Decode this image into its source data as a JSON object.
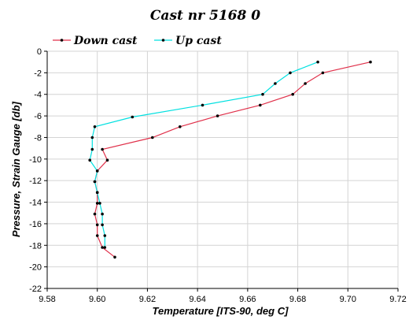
{
  "chart_data": {
    "type": "line",
    "title": "Cast nr 5168 0",
    "xlabel": "Temperature [ITS-90, deg C]",
    "ylabel": "Pressure, Strain Gauge [db]",
    "xlim": [
      9.58,
      9.72
    ],
    "ylim": [
      -22,
      0
    ],
    "xticks": [
      9.58,
      9.6,
      9.62,
      9.64,
      9.66,
      9.68,
      9.7,
      9.72
    ],
    "xtick_labels": [
      "9.58",
      "9.60",
      "9.62",
      "9.64",
      "9.66",
      "9.68",
      "9.70",
      "9.72"
    ],
    "yticks": [
      0,
      -2,
      -4,
      -6,
      -8,
      -10,
      -12,
      -14,
      -16,
      -18,
      -20,
      -22
    ],
    "ytick_labels": [
      "0",
      "-2",
      "-4",
      "-6",
      "-8",
      "-10",
      "-12",
      "-14",
      "-16",
      "-18",
      "-20",
      "-22"
    ],
    "grid": true,
    "legend_position": "top-left",
    "series": [
      {
        "name": "Down cast",
        "color": "#e0304a",
        "points": [
          [
            9.709,
            -1.0
          ],
          [
            9.69,
            -2.0
          ],
          [
            9.683,
            -3.0
          ],
          [
            9.678,
            -4.0
          ],
          [
            9.665,
            -5.0
          ],
          [
            9.648,
            -6.0
          ],
          [
            9.633,
            -7.0
          ],
          [
            9.622,
            -8.0
          ],
          [
            9.602,
            -9.1
          ],
          [
            9.604,
            -10.1
          ],
          [
            9.6,
            -11.1
          ],
          [
            9.599,
            -12.1
          ],
          [
            9.6,
            -13.1
          ],
          [
            9.6,
            -14.1
          ],
          [
            9.599,
            -15.1
          ],
          [
            9.6,
            -16.1
          ],
          [
            9.6,
            -17.1
          ],
          [
            9.602,
            -18.2
          ],
          [
            9.607,
            -19.1
          ]
        ]
      },
      {
        "name": "Up cast",
        "color": "#00e0e0",
        "points": [
          [
            9.688,
            -1.0
          ],
          [
            9.677,
            -2.0
          ],
          [
            9.671,
            -3.0
          ],
          [
            9.666,
            -4.0
          ],
          [
            9.642,
            -5.0
          ],
          [
            9.614,
            -6.1
          ],
          [
            9.599,
            -7.0
          ],
          [
            9.598,
            -8.0
          ],
          [
            9.598,
            -9.1
          ],
          [
            9.597,
            -10.1
          ],
          [
            9.6,
            -11.1
          ],
          [
            9.599,
            -12.1
          ],
          [
            9.6,
            -13.1
          ],
          [
            9.601,
            -14.1
          ],
          [
            9.602,
            -15.1
          ],
          [
            9.602,
            -16.1
          ],
          [
            9.603,
            -17.1
          ],
          [
            9.603,
            -18.2
          ]
        ]
      }
    ]
  }
}
